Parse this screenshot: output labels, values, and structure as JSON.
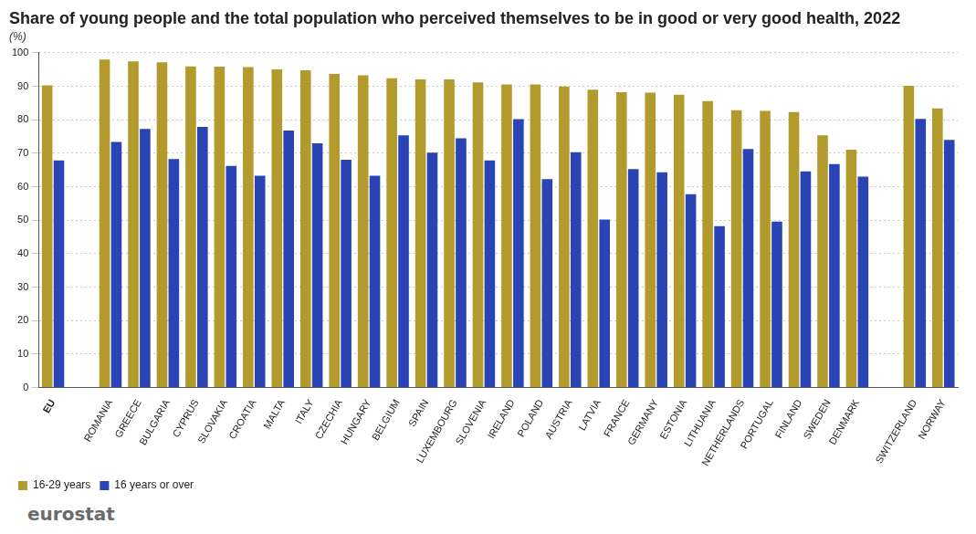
{
  "chart_data": {
    "type": "bar",
    "title": "Share of young people and the total population who perceived themselves to be in good or very good health, 2022",
    "subtitle": "(%)",
    "categories": [
      "EU",
      null,
      "ROMANIA",
      "GREECE",
      "BULGARIA",
      "CYPRUS",
      "SLOVAKIA",
      "CROATIA",
      "MALTA",
      "ITALY",
      "CZECHIA",
      "HUNGARY",
      "BELGIUM",
      "SPAIN",
      "LUXEMBOURG",
      "SLOVENIA",
      "IRELAND",
      "POLAND",
      "AUSTRIA",
      "LATVIA",
      "FRANCE",
      "GERMANY",
      "ESTONIA",
      "LITHUANIA",
      "NETHERLANDS",
      "PORTUGAL",
      "FINLAND",
      "SWEDEN",
      "DENMARK",
      null,
      "SWITZERLAND",
      "NORWAY"
    ],
    "series": [
      {
        "name": "16-29 years",
        "color": "#b39a2c",
        "values": [
          90.3,
          null,
          98.0,
          97.5,
          97.2,
          96.0,
          95.9,
          95.8,
          95.1,
          94.8,
          93.7,
          93.3,
          92.4,
          92.1,
          92.1,
          91.2,
          90.6,
          90.6,
          90.0,
          89.0,
          88.3,
          88.1,
          87.5,
          85.6,
          82.9,
          82.7,
          82.3,
          75.4,
          71.1,
          null,
          90.2,
          83.4
        ]
      },
      {
        "name": "16 years or over",
        "color": "#2a44b5",
        "values": [
          67.9,
          null,
          73.4,
          77.3,
          68.3,
          77.9,
          66.2,
          63.3,
          76.8,
          73.0,
          68.1,
          63.3,
          75.4,
          70.2,
          74.5,
          67.9,
          80.2,
          62.3,
          70.3,
          50.2,
          65.3,
          64.3,
          57.8,
          48.2,
          71.3,
          49.6,
          64.6,
          66.8,
          63.0,
          null,
          80.3,
          74.0
        ]
      }
    ],
    "ylim": [
      0,
      100
    ],
    "yticks": [
      0,
      10,
      20,
      30,
      40,
      50,
      60,
      70,
      80,
      90,
      100
    ],
    "grid": true,
    "legend": "bottom-left",
    "annotations": [
      "eurostat"
    ]
  }
}
